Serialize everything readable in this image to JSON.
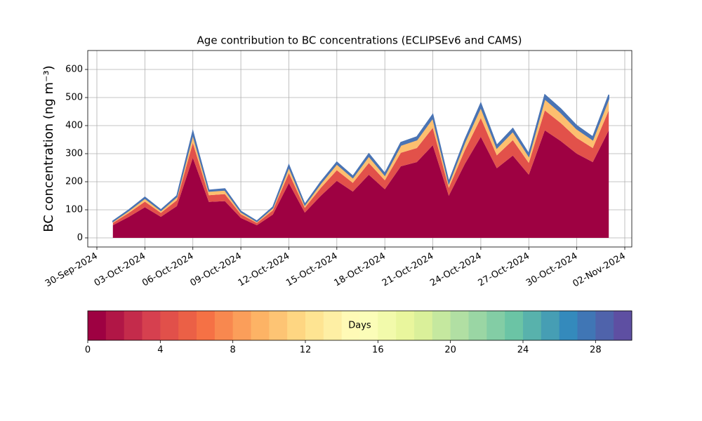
{
  "chart_data": {
    "type": "stacked-area",
    "title": "Age contribution to BC concentrations (ECLIPSEv6 and CAMS)",
    "y_label": "BC concentration (ng m⁻³)",
    "x": [
      "2024-10-01",
      "2024-10-02",
      "2024-10-03",
      "2024-10-04",
      "2024-10-05",
      "2024-10-06",
      "2024-10-07",
      "2024-10-08",
      "2024-10-09",
      "2024-10-10",
      "2024-10-11",
      "2024-10-12",
      "2024-10-13",
      "2024-10-14",
      "2024-10-15",
      "2024-10-16",
      "2024-10-17",
      "2024-10-18",
      "2024-10-19",
      "2024-10-20",
      "2024-10-21",
      "2024-10-22",
      "2024-10-23",
      "2024-10-24",
      "2024-10-25",
      "2024-10-26",
      "2024-10-27",
      "2024-10-28",
      "2024-10-29",
      "2024-10-30",
      "2024-10-31",
      "2024-11-01"
    ],
    "series": [
      {
        "color": "#9e0142",
        "values": [
          45,
          75,
          109,
          75,
          113,
          285,
          128,
          131,
          71,
          45,
          83,
          195,
          90,
          150,
          203,
          165,
          225,
          173,
          255,
          270,
          330,
          150,
          263,
          360,
          248,
          293,
          225,
          383,
          345,
          300,
          270,
          383
        ]
      },
      {
        "color": "#e2514a",
        "values": [
          8,
          14,
          20,
          14,
          21,
          53,
          24,
          25,
          13,
          8,
          15,
          36,
          17,
          28,
          38,
          31,
          42,
          32,
          48,
          50,
          62,
          28,
          49,
          67,
          46,
          55,
          42,
          71,
          64,
          56,
          50,
          71
        ]
      },
      {
        "color": "#fdbf6f",
        "values": [
          5,
          8,
          12,
          8,
          12,
          30,
          14,
          14,
          8,
          5,
          9,
          21,
          10,
          16,
          22,
          18,
          24,
          18,
          27,
          29,
          35,
          16,
          28,
          38,
          26,
          31,
          24,
          41,
          37,
          32,
          29,
          41
        ]
      },
      {
        "color": "#4a74b4",
        "values": [
          2,
          3,
          4,
          3,
          4,
          12,
          4,
          5,
          3,
          2,
          3,
          8,
          3,
          6,
          7,
          6,
          9,
          7,
          10,
          11,
          13,
          6,
          10,
          15,
          10,
          11,
          9,
          15,
          14,
          12,
          11,
          15
        ]
      }
    ],
    "xlim": [
      "2024-09-30",
      "2024-11-02"
    ],
    "xticks": [
      {
        "value": "2024-09-30",
        "label": "30-Sep-2024"
      },
      {
        "value": "2024-10-03",
        "label": "03-Oct-2024"
      },
      {
        "value": "2024-10-06",
        "label": "06-Oct-2024"
      },
      {
        "value": "2024-10-09",
        "label": "09-Oct-2024"
      },
      {
        "value": "2024-10-12",
        "label": "12-Oct-2024"
      },
      {
        "value": "2024-10-15",
        "label": "15-Oct-2024"
      },
      {
        "value": "2024-10-18",
        "label": "18-Oct-2024"
      },
      {
        "value": "2024-10-21",
        "label": "21-Oct-2024"
      },
      {
        "value": "2024-10-24",
        "label": "24-Oct-2024"
      },
      {
        "value": "2024-10-27",
        "label": "27-Oct-2024"
      },
      {
        "value": "2024-10-30",
        "label": "30-Oct-2024"
      },
      {
        "value": "2024-11-02",
        "label": "02-Nov-2024"
      }
    ],
    "ylim": [
      -32.5,
      667.5
    ],
    "yticks": [
      0,
      100,
      200,
      300,
      400,
      500,
      600
    ],
    "grid": true,
    "colorbar": {
      "label": "Days",
      "lim": [
        0,
        30
      ],
      "ticks": [
        0,
        4,
        8,
        12,
        16,
        20,
        24,
        28
      ],
      "levels": 30,
      "colormap": [
        "#9e0142",
        "#d53e4f",
        "#f46d43",
        "#fdae61",
        "#fee08b",
        "#ffffbf",
        "#e6f598",
        "#abdda4",
        "#66c2a5",
        "#3288bd",
        "#5e4fa2"
      ]
    }
  }
}
